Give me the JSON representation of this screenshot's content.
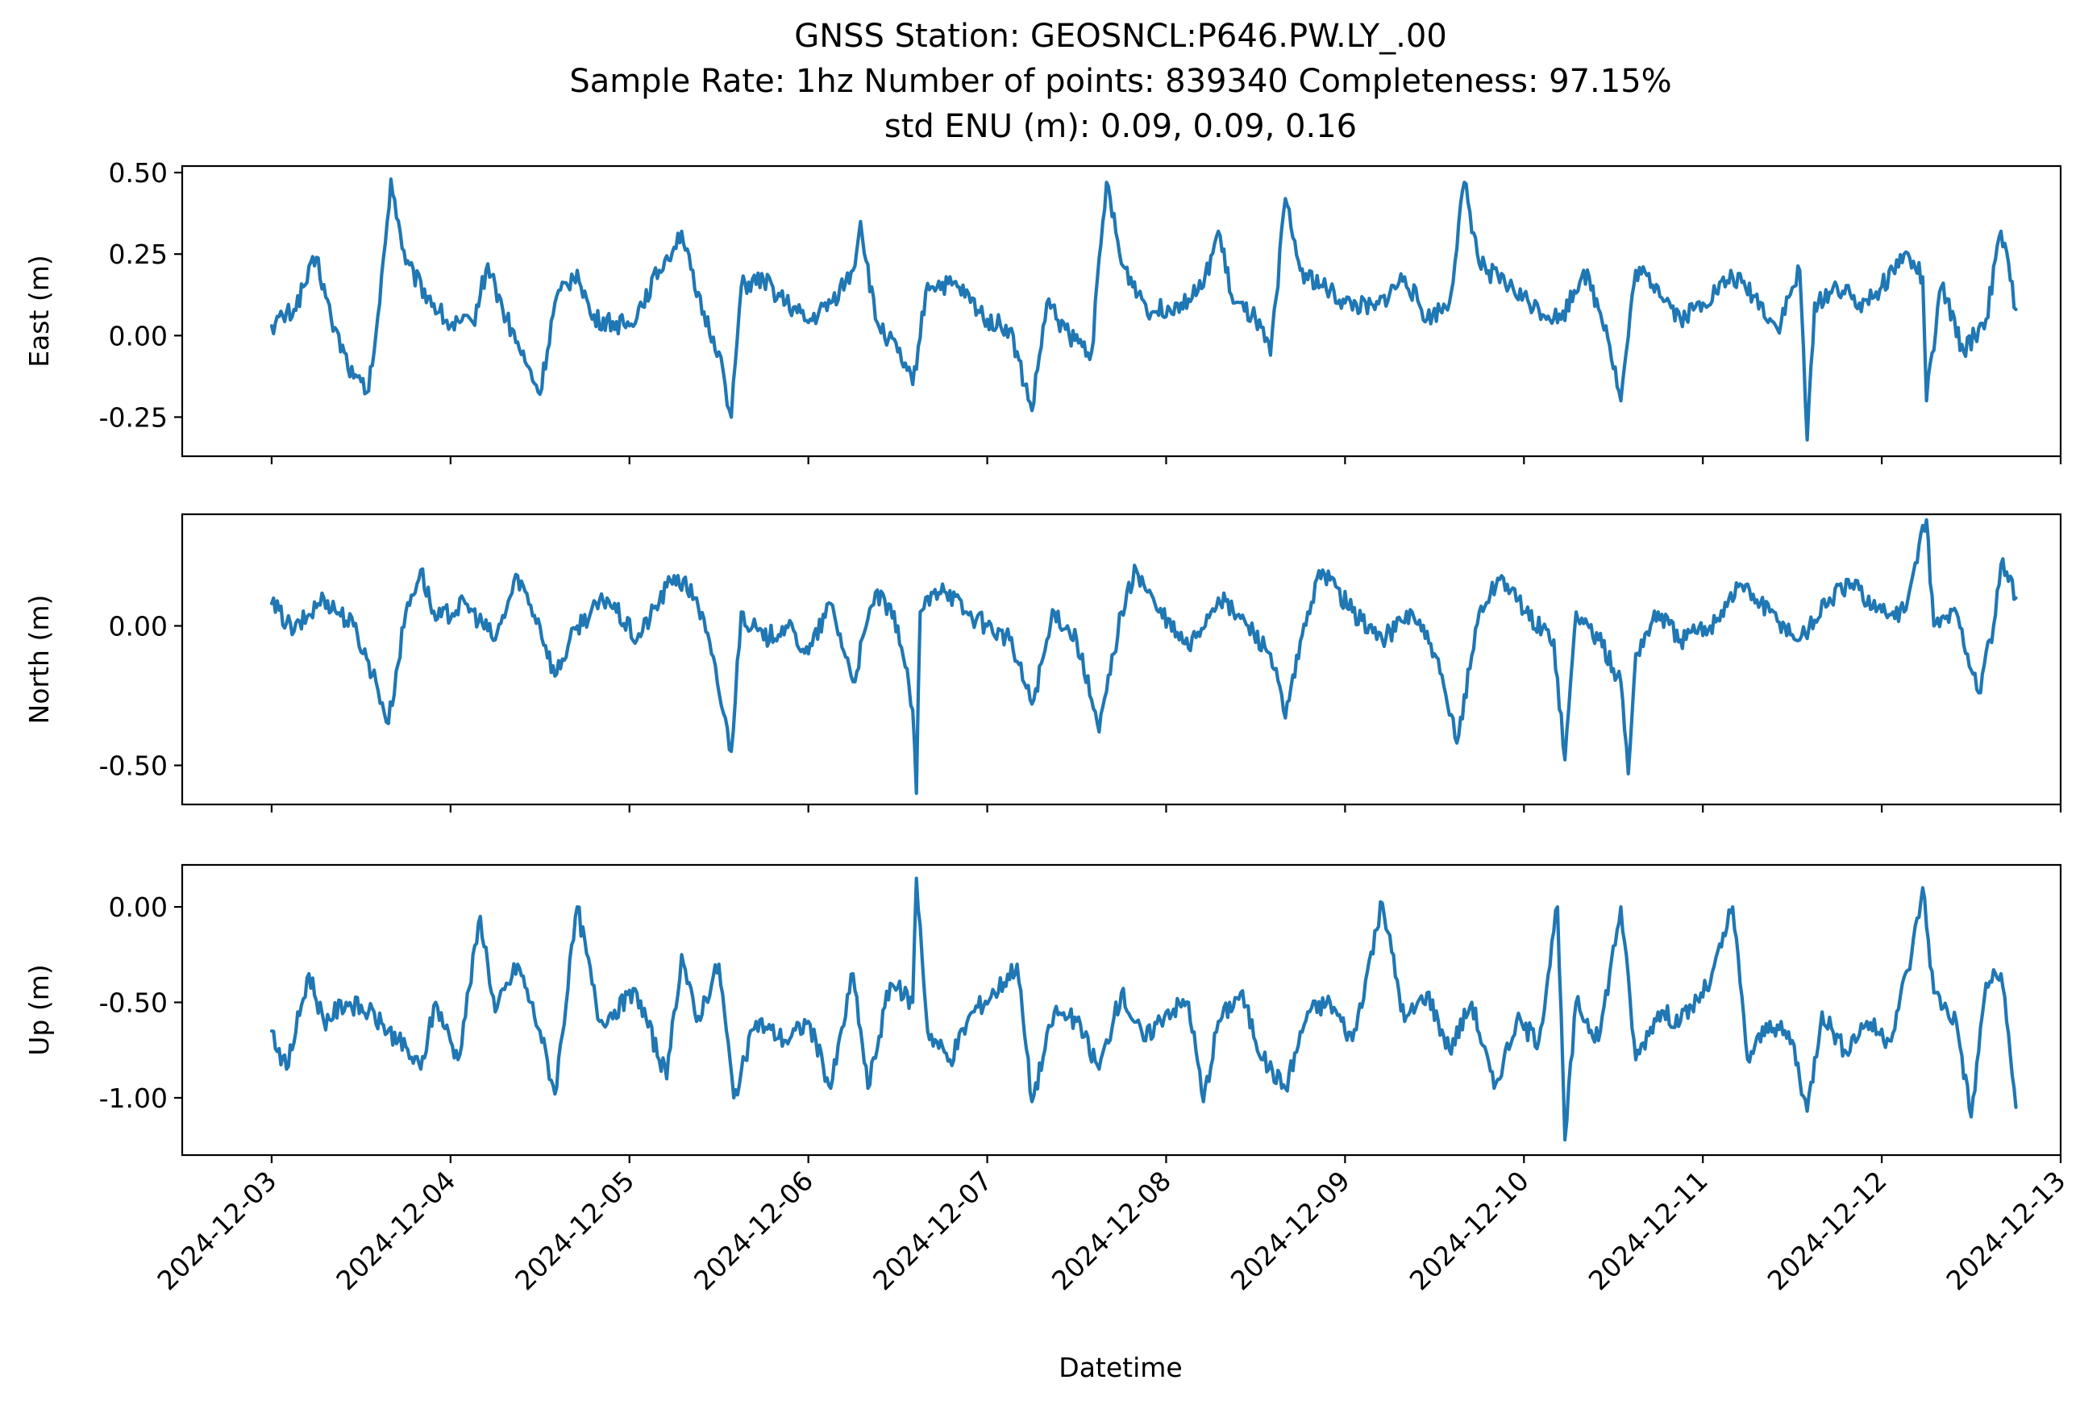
{
  "figure": {
    "title_lines": [
      "GNSS Station: GEOSNCL:P646.PW.LY_.00",
      "Sample Rate: 1hz   Number of points: 839340    Completeness:  97.15%",
      "std ENU (m):  0.09, 0.09, 0.16"
    ],
    "xlabel": "Datetime",
    "series_color": "#1f77b4"
  },
  "chart_data": [
    {
      "type": "line",
      "ylabel": "East (m)",
      "ylim": [
        -0.37,
        0.52
      ],
      "yticks": [
        -0.25,
        0.0,
        0.25,
        0.5
      ],
      "ytick_labels": [
        "-0.25",
        "0.00",
        "0.25",
        "0.50"
      ],
      "x_range": [
        "2024-12-03",
        "2024-12-12 18:00"
      ],
      "grid": false,
      "points": [
        [
          "2024-12-03 00:00",
          0.03
        ],
        [
          "2024-12-03 03:00",
          0.08
        ],
        [
          "2024-12-03 06:00",
          0.24
        ],
        [
          "2024-12-03 08:00",
          0.05
        ],
        [
          "2024-12-03 11:00",
          -0.13
        ],
        [
          "2024-12-03 13:00",
          -0.17
        ],
        [
          "2024-12-03 14:30",
          0.1
        ],
        [
          "2024-12-03 16:00",
          0.48
        ],
        [
          "2024-12-03 18:00",
          0.22
        ],
        [
          "2024-12-03 21:00",
          0.12
        ],
        [
          "2024-12-04 00:00",
          0.03
        ],
        [
          "2024-12-04 03:00",
          0.04
        ],
        [
          "2024-12-04 05:00",
          0.22
        ],
        [
          "2024-12-04 07:00",
          0.08
        ],
        [
          "2024-12-04 10:00",
          -0.08
        ],
        [
          "2024-12-04 12:00",
          -0.18
        ],
        [
          "2024-12-04 14:00",
          0.1
        ],
        [
          "2024-12-04 17:00",
          0.2
        ],
        [
          "2024-12-04 19:00",
          0.05
        ],
        [
          "2024-12-05 00:00",
          0.03
        ],
        [
          "2024-12-05 04:00",
          0.2
        ],
        [
          "2024-12-05 07:00",
          0.32
        ],
        [
          "2024-12-05 09:00",
          0.12
        ],
        [
          "2024-12-05 12:00",
          -0.05
        ],
        [
          "2024-12-05 13:40",
          -0.25
        ],
        [
          "2024-12-05 15:00",
          0.15
        ],
        [
          "2024-12-05 18:00",
          0.17
        ],
        [
          "2024-12-05 21:00",
          0.1
        ],
        [
          "2024-12-06 00:00",
          0.04
        ],
        [
          "2024-12-06 03:00",
          0.1
        ],
        [
          "2024-12-06 06:00",
          0.2
        ],
        [
          "2024-12-06 07:00",
          0.35
        ],
        [
          "2024-12-06 09:00",
          0.05
        ],
        [
          "2024-12-06 12:00",
          -0.05
        ],
        [
          "2024-12-06 14:00",
          -0.15
        ],
        [
          "2024-12-06 16:00",
          0.16
        ],
        [
          "2024-12-06 20:00",
          0.15
        ],
        [
          "2024-12-07 00:00",
          0.05
        ],
        [
          "2024-12-07 03:00",
          0.02
        ],
        [
          "2024-12-07 06:00",
          -0.23
        ],
        [
          "2024-12-07 08:00",
          0.1
        ],
        [
          "2024-12-07 11:00",
          0.0
        ],
        [
          "2024-12-07 14:00",
          -0.05
        ],
        [
          "2024-12-07 16:00",
          0.47
        ],
        [
          "2024-12-07 18:00",
          0.22
        ],
        [
          "2024-12-07 22:00",
          0.07
        ],
        [
          "2024-12-08 02:00",
          0.1
        ],
        [
          "2024-12-08 05:00",
          0.15
        ],
        [
          "2024-12-08 07:00",
          0.32
        ],
        [
          "2024-12-08 09:00",
          0.1
        ],
        [
          "2024-12-08 12:00",
          0.05
        ],
        [
          "2024-12-08 14:00",
          -0.06
        ],
        [
          "2024-12-08 16:00",
          0.42
        ],
        [
          "2024-12-08 18:00",
          0.2
        ],
        [
          "2024-12-08 21:00",
          0.15
        ],
        [
          "2024-12-09 00:00",
          0.1
        ],
        [
          "2024-12-09 04:00",
          0.08
        ],
        [
          "2024-12-09 08:00",
          0.18
        ],
        [
          "2024-12-09 11:00",
          0.05
        ],
        [
          "2024-12-09 14:00",
          0.1
        ],
        [
          "2024-12-09 16:00",
          0.47
        ],
        [
          "2024-12-09 18:00",
          0.22
        ],
        [
          "2024-12-09 22:00",
          0.15
        ],
        [
          "2024-12-10 02:00",
          0.08
        ],
        [
          "2024-12-10 05:00",
          0.05
        ],
        [
          "2024-12-10 08:00",
          0.2
        ],
        [
          "2024-12-10 11:00",
          0.03
        ],
        [
          "2024-12-10 13:00",
          -0.2
        ],
        [
          "2024-12-10 15:00",
          0.2
        ],
        [
          "2024-12-10 18:00",
          0.15
        ],
        [
          "2024-12-10 21:00",
          0.05
        ],
        [
          "2024-12-11 00:00",
          0.1
        ],
        [
          "2024-12-11 04:00",
          0.18
        ],
        [
          "2024-12-11 07:00",
          0.12
        ],
        [
          "2024-12-11 10:00",
          0.02
        ],
        [
          "2024-12-11 13:00",
          0.2
        ],
        [
          "2024-12-11 14:00",
          -0.32
        ],
        [
          "2024-12-11 15:00",
          0.1
        ],
        [
          "2024-12-11 18:00",
          0.15
        ],
        [
          "2024-12-11 21:00",
          0.1
        ],
        [
          "2024-12-12 00:00",
          0.15
        ],
        [
          "2024-12-12 03:00",
          0.25
        ],
        [
          "2024-12-12 05:30",
          0.18
        ],
        [
          "2024-12-12 06:00",
          -0.2
        ],
        [
          "2024-12-12 08:00",
          0.15
        ],
        [
          "2024-12-12 11:00",
          -0.05
        ],
        [
          "2024-12-12 14:00",
          0.05
        ],
        [
          "2024-12-12 16:00",
          0.32
        ],
        [
          "2024-12-12 18:00",
          0.08
        ]
      ]
    },
    {
      "type": "line",
      "ylabel": "North (m)",
      "ylim": [
        -0.64,
        0.4
      ],
      "yticks": [
        -0.5,
        0.0
      ],
      "ytick_labels": [
        "-0.50",
        "0.00"
      ],
      "x_range": [
        "2024-12-03",
        "2024-12-12 18:00"
      ],
      "grid": false,
      "points": [
        [
          "2024-12-03 00:00",
          0.08
        ],
        [
          "2024-12-03 03:00",
          -0.02
        ],
        [
          "2024-12-03 07:00",
          0.1
        ],
        [
          "2024-12-03 11:00",
          0.0
        ],
        [
          "2024-12-03 14:00",
          -0.2
        ],
        [
          "2024-12-03 15:40",
          -0.35
        ],
        [
          "2024-12-03 18:00",
          0.05
        ],
        [
          "2024-12-03 20:00",
          0.2
        ],
        [
          "2024-12-03 22:00",
          0.02
        ],
        [
          "2024-12-04 02:00",
          0.08
        ],
        [
          "2024-12-04 06:00",
          -0.05
        ],
        [
          "2024-12-04 09:00",
          0.18
        ],
        [
          "2024-12-04 12:00",
          0.0
        ],
        [
          "2024-12-04 14:00",
          -0.18
        ],
        [
          "2024-12-04 17:00",
          0.0
        ],
        [
          "2024-12-04 21:00",
          0.1
        ],
        [
          "2024-12-05 01:00",
          -0.05
        ],
        [
          "2024-12-05 06:00",
          0.18
        ],
        [
          "2024-12-05 09:00",
          0.1
        ],
        [
          "2024-12-05 11:00",
          -0.1
        ],
        [
          "2024-12-05 13:40",
          -0.45
        ],
        [
          "2024-12-05 15:00",
          0.05
        ],
        [
          "2024-12-05 18:00",
          -0.05
        ],
        [
          "2024-12-05 21:00",
          0.0
        ],
        [
          "2024-12-06 00:00",
          -0.1
        ],
        [
          "2024-12-06 03:00",
          0.08
        ],
        [
          "2024-12-06 06:00",
          -0.2
        ],
        [
          "2024-12-06 09:00",
          0.12
        ],
        [
          "2024-12-06 12:00",
          0.0
        ],
        [
          "2024-12-06 14:00",
          -0.3
        ],
        [
          "2024-12-06 14:30",
          -0.6
        ],
        [
          "2024-12-06 15:00",
          0.05
        ],
        [
          "2024-12-06 18:00",
          0.15
        ],
        [
          "2024-12-06 21:00",
          0.05
        ],
        [
          "2024-12-07 00:00",
          0.0
        ],
        [
          "2024-12-07 03:00",
          -0.05
        ],
        [
          "2024-12-07 06:00",
          -0.28
        ],
        [
          "2024-12-07 09:00",
          0.05
        ],
        [
          "2024-12-07 12:00",
          -0.05
        ],
        [
          "2024-12-07 15:00",
          -0.38
        ],
        [
          "2024-12-07 18:00",
          0.05
        ],
        [
          "2024-12-07 20:00",
          0.2
        ],
        [
          "2024-12-07 23:00",
          0.05
        ],
        [
          "2024-12-08 03:00",
          -0.08
        ],
        [
          "2024-12-08 07:00",
          0.1
        ],
        [
          "2024-12-08 11:00",
          0.0
        ],
        [
          "2024-12-08 14:00",
          -0.1
        ],
        [
          "2024-12-08 16:00",
          -0.33
        ],
        [
          "2024-12-08 19:00",
          0.05
        ],
        [
          "2024-12-08 21:00",
          0.2
        ],
        [
          "2024-12-09 01:00",
          0.05
        ],
        [
          "2024-12-09 05:00",
          -0.05
        ],
        [
          "2024-12-09 09:00",
          0.05
        ],
        [
          "2024-12-09 12:00",
          -0.1
        ],
        [
          "2024-12-09 15:00",
          -0.42
        ],
        [
          "2024-12-09 18:00",
          0.05
        ],
        [
          "2024-12-09 21:00",
          0.18
        ],
        [
          "2024-12-10 00:00",
          0.05
        ],
        [
          "2024-12-10 04:00",
          -0.05
        ],
        [
          "2024-12-10 05:30",
          -0.48
        ],
        [
          "2024-12-10 07:00",
          0.05
        ],
        [
          "2024-12-10 10:00",
          -0.05
        ],
        [
          "2024-12-10 13:00",
          -0.2
        ],
        [
          "2024-12-10 14:00",
          -0.53
        ],
        [
          "2024-12-10 15:00",
          -0.1
        ],
        [
          "2024-12-10 18:00",
          0.05
        ],
        [
          "2024-12-10 21:00",
          -0.05
        ],
        [
          "2024-12-11 01:00",
          0.0
        ],
        [
          "2024-12-11 05:00",
          0.15
        ],
        [
          "2024-12-11 09:00",
          0.05
        ],
        [
          "2024-12-11 13:00",
          -0.05
        ],
        [
          "2024-12-11 17:00",
          0.1
        ],
        [
          "2024-12-11 20:00",
          0.15
        ],
        [
          "2024-12-12 00:00",
          0.05
        ],
        [
          "2024-12-12 03:00",
          0.05
        ],
        [
          "2024-12-12 06:00",
          0.38
        ],
        [
          "2024-12-12 07:00",
          0.0
        ],
        [
          "2024-12-12 10:00",
          0.05
        ],
        [
          "2024-12-12 13:00",
          -0.24
        ],
        [
          "2024-12-12 15:00",
          0.0
        ],
        [
          "2024-12-12 16:00",
          0.22
        ],
        [
          "2024-12-12 18:00",
          0.1
        ]
      ]
    },
    {
      "type": "line",
      "ylabel": "Up (m)",
      "ylim": [
        -1.3,
        0.22
      ],
      "yticks": [
        -1.0,
        -0.5,
        0.0
      ],
      "ytick_labels": [
        "-1.00",
        "-0.50",
        "0.00"
      ],
      "x_range": [
        "2024-12-03",
        "2024-12-12 18:00"
      ],
      "grid": false,
      "points": [
        [
          "2024-12-03 00:00",
          -0.65
        ],
        [
          "2024-12-03 02:00",
          -0.85
        ],
        [
          "2024-12-03 05:00",
          -0.35
        ],
        [
          "2024-12-03 07:00",
          -0.6
        ],
        [
          "2024-12-03 10:00",
          -0.5
        ],
        [
          "2024-12-03 13:00",
          -0.55
        ],
        [
          "2024-12-03 17:00",
          -0.7
        ],
        [
          "2024-12-03 20:00",
          -0.85
        ],
        [
          "2024-12-03 22:00",
          -0.5
        ],
        [
          "2024-12-04 01:00",
          -0.8
        ],
        [
          "2024-12-04 04:00",
          -0.05
        ],
        [
          "2024-12-04 06:00",
          -0.55
        ],
        [
          "2024-12-04 09:00",
          -0.3
        ],
        [
          "2024-12-04 12:00",
          -0.65
        ],
        [
          "2024-12-04 14:00",
          -0.98
        ],
        [
          "2024-12-04 17:00",
          -0.0
        ],
        [
          "2024-12-04 20:00",
          -0.6
        ],
        [
          "2024-12-05 01:00",
          -0.45
        ],
        [
          "2024-12-05 05:00",
          -0.9
        ],
        [
          "2024-12-05 07:00",
          -0.25
        ],
        [
          "2024-12-05 09:00",
          -0.6
        ],
        [
          "2024-12-05 12:00",
          -0.3
        ],
        [
          "2024-12-05 14:00",
          -1.0
        ],
        [
          "2024-12-05 17:00",
          -0.6
        ],
        [
          "2024-12-05 21:00",
          -0.7
        ],
        [
          "2024-12-06 00:00",
          -0.6
        ],
        [
          "2024-12-06 03:00",
          -0.95
        ],
        [
          "2024-12-06 06:00",
          -0.35
        ],
        [
          "2024-12-06 08:00",
          -0.95
        ],
        [
          "2024-12-06 11:00",
          -0.4
        ],
        [
          "2024-12-06 14:00",
          -0.5
        ],
        [
          "2024-12-06 14:30",
          0.15
        ],
        [
          "2024-12-06 16:00",
          -0.65
        ],
        [
          "2024-12-06 19:00",
          -0.8
        ],
        [
          "2024-12-06 22:00",
          -0.55
        ],
        [
          "2024-12-07 01:00",
          -0.45
        ],
        [
          "2024-12-07 04:00",
          -0.3
        ],
        [
          "2024-12-07 06:00",
          -1.02
        ],
        [
          "2024-12-07 09:00",
          -0.55
        ],
        [
          "2024-12-07 12:00",
          -0.6
        ],
        [
          "2024-12-07 15:00",
          -0.85
        ],
        [
          "2024-12-07 18:00",
          -0.45
        ],
        [
          "2024-12-07 21:00",
          -0.7
        ],
        [
          "2024-12-08 00:00",
          -0.55
        ],
        [
          "2024-12-08 03:00",
          -0.5
        ],
        [
          "2024-12-08 05:00",
          -1.02
        ],
        [
          "2024-12-08 07:00",
          -0.6
        ],
        [
          "2024-12-08 10:00",
          -0.45
        ],
        [
          "2024-12-08 13:00",
          -0.8
        ],
        [
          "2024-12-08 16:00",
          -0.95
        ],
        [
          "2024-12-08 19:00",
          -0.55
        ],
        [
          "2024-12-08 22:00",
          -0.5
        ],
        [
          "2024-12-09 01:00",
          -0.7
        ],
        [
          "2024-12-09 05:00",
          0.02
        ],
        [
          "2024-12-09 08:00",
          -0.6
        ],
        [
          "2024-12-09 11:00",
          -0.45
        ],
        [
          "2024-12-09 14:00",
          -0.75
        ],
        [
          "2024-12-09 17:00",
          -0.5
        ],
        [
          "2024-12-09 20:00",
          -0.95
        ],
        [
          "2024-12-09 23:00",
          -0.6
        ],
        [
          "2024-12-10 02:00",
          -0.7
        ],
        [
          "2024-12-10 04:30",
          -0.0
        ],
        [
          "2024-12-10 05:30",
          -1.22
        ],
        [
          "2024-12-10 07:00",
          -0.5
        ],
        [
          "2024-12-10 10:00",
          -0.7
        ],
        [
          "2024-12-10 13:00",
          -0.0
        ],
        [
          "2024-12-10 15:00",
          -0.8
        ],
        [
          "2024-12-10 18:00",
          -0.55
        ],
        [
          "2024-12-10 21:00",
          -0.6
        ],
        [
          "2024-12-11 01:00",
          -0.4
        ],
        [
          "2024-12-11 04:00",
          -0.0
        ],
        [
          "2024-12-11 06:00",
          -0.8
        ],
        [
          "2024-12-11 09:00",
          -0.6
        ],
        [
          "2024-12-11 12:00",
          -0.7
        ],
        [
          "2024-12-11 14:00",
          -1.07
        ],
        [
          "2024-12-11 16:00",
          -0.55
        ],
        [
          "2024-12-11 19:00",
          -0.75
        ],
        [
          "2024-12-11 22:00",
          -0.6
        ],
        [
          "2024-12-12 01:00",
          -0.7
        ],
        [
          "2024-12-12 04:00",
          -0.25
        ],
        [
          "2024-12-12 05:30",
          0.1
        ],
        [
          "2024-12-12 07:00",
          -0.45
        ],
        [
          "2024-12-12 10:00",
          -0.6
        ],
        [
          "2024-12-12 12:00",
          -1.1
        ],
        [
          "2024-12-12 14:00",
          -0.4
        ],
        [
          "2024-12-12 16:00",
          -0.35
        ],
        [
          "2024-12-12 18:00",
          -1.05
        ]
      ]
    }
  ],
  "x_axis": {
    "ticks": [
      "2024-12-03",
      "2024-12-04",
      "2024-12-05",
      "2024-12-06",
      "2024-12-07",
      "2024-12-08",
      "2024-12-09",
      "2024-12-10",
      "2024-12-11",
      "2024-12-12",
      "2024-12-13"
    ],
    "range": [
      "2024-12-02 12:00",
      "2024-12-13"
    ]
  }
}
